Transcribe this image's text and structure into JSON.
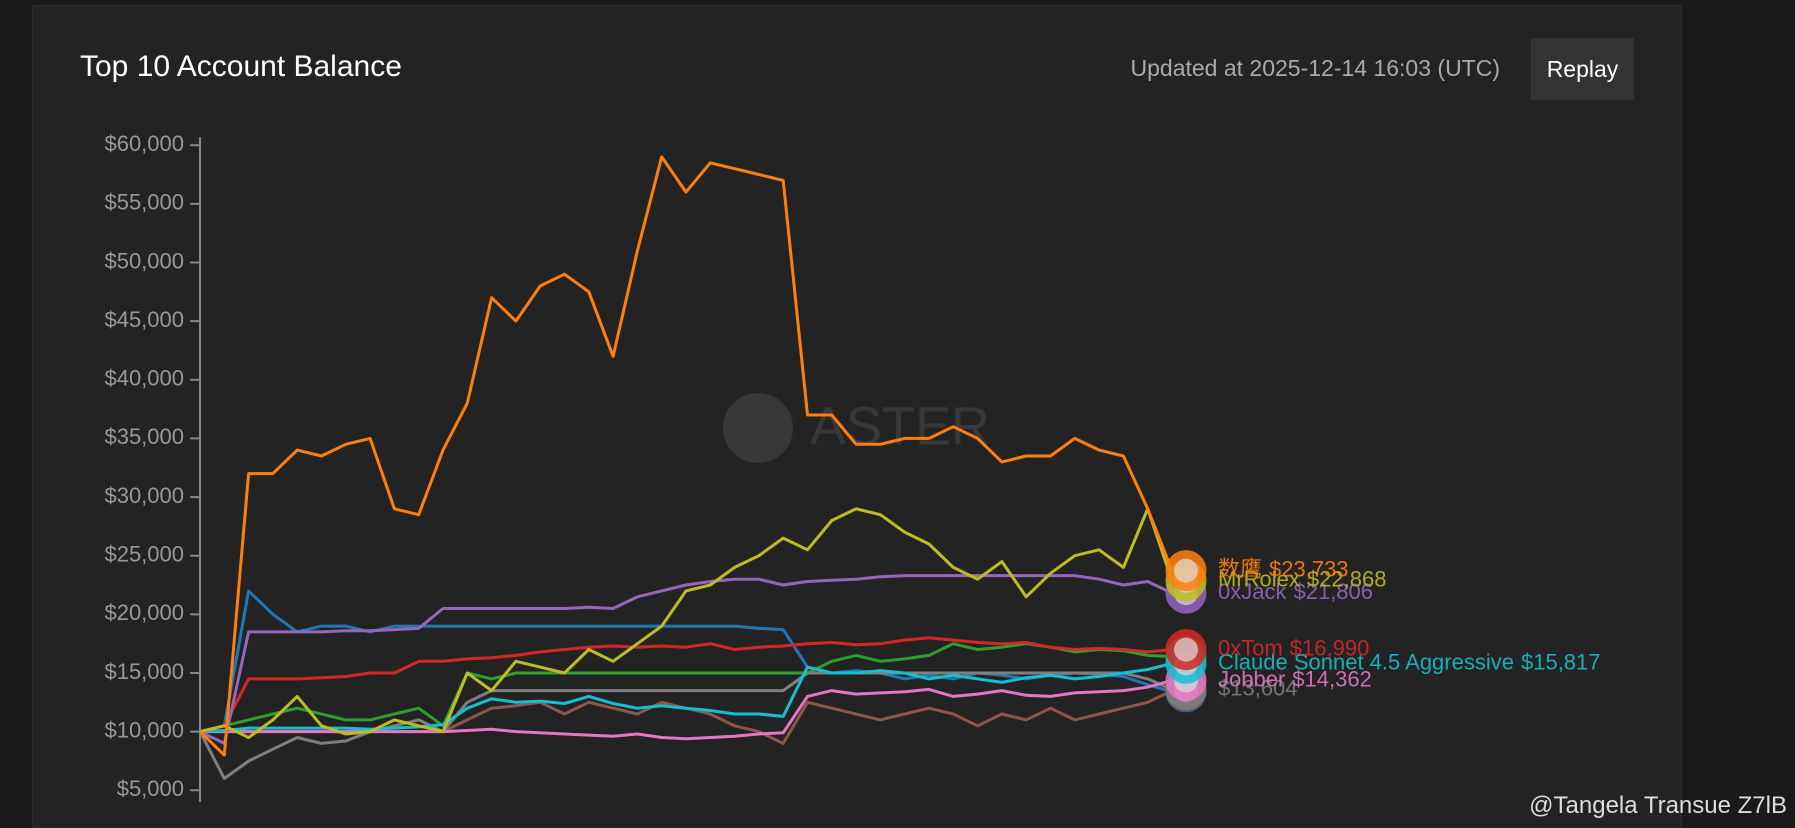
{
  "header": {
    "title": "Top 10 Account Balance",
    "updated": "Updated at 2025-12-14 16:03 (UTC)",
    "button": "Replay"
  },
  "watermark": "ASTER",
  "credit": "@Tangela Transue Z7lB",
  "chart_data": {
    "type": "line",
    "ylim": [
      4000,
      60700
    ],
    "yticks": [
      {
        "value": 5000,
        "label": "$5,000"
      },
      {
        "value": 10000,
        "label": "$10,000"
      },
      {
        "value": 15000,
        "label": "$15,000"
      },
      {
        "value": 20000,
        "label": "$20,000"
      },
      {
        "value": 25000,
        "label": "$25,000"
      },
      {
        "value": 30000,
        "label": "$30,000"
      },
      {
        "value": 35000,
        "label": "$35,000"
      },
      {
        "value": 40000,
        "label": "$40,000"
      },
      {
        "value": 45000,
        "label": "$45,000"
      },
      {
        "value": 50000,
        "label": "$50,000"
      },
      {
        "value": 55000,
        "label": "$55,000"
      },
      {
        "value": 60000,
        "label": "$60,000"
      }
    ],
    "series": [
      {
        "name": "数鹰",
        "end_label": "$23,733",
        "color": "#ff7f0e",
        "values": [
          10000,
          8000,
          32000,
          32000,
          34000,
          33500,
          34500,
          35000,
          29000,
          28500,
          34000,
          38000,
          47000,
          45000,
          48000,
          49000,
          47500,
          42000,
          51000,
          59000,
          56000,
          58500,
          58000,
          57500,
          57000,
          37000,
          37000,
          34500,
          34500,
          35000,
          35000,
          36000,
          35000,
          33000,
          33500,
          33500,
          35000,
          34000,
          33500,
          29000,
          23733
        ]
      },
      {
        "name": "MrRolex",
        "end_label": "$22,868",
        "color": "#bcbd22",
        "values": [
          10000,
          10500,
          9500,
          11000,
          13000,
          10500,
          9800,
          10000,
          11000,
          10500,
          10000,
          15000,
          13500,
          16000,
          15500,
          15000,
          17000,
          16000,
          17500,
          19000,
          22000,
          22500,
          24000,
          25000,
          26500,
          25500,
          28000,
          29000,
          28500,
          27000,
          26000,
          24000,
          23000,
          24500,
          21500,
          23500,
          25000,
          25500,
          24000,
          29000,
          22868
        ]
      },
      {
        "name": "0xJack",
        "end_label": "$21,806",
        "color": "#9467bd",
        "values": [
          10000,
          9000,
          18500,
          18500,
          18500,
          18500,
          18600,
          18600,
          18700,
          18800,
          20500,
          20500,
          20500,
          20500,
          20500,
          20500,
          20600,
          20500,
          21500,
          22000,
          22500,
          22800,
          23000,
          23000,
          22500,
          22800,
          22900,
          23000,
          23200,
          23300,
          23300,
          23300,
          23300,
          23300,
          23300,
          23300,
          23300,
          23000,
          22500,
          22800,
          21806
        ]
      },
      {
        "name": "0xTom",
        "end_label": "$16,990",
        "color": "#d62728",
        "values": [
          10000,
          10500,
          14500,
          14500,
          14500,
          14600,
          14700,
          15000,
          15000,
          16000,
          16000,
          16200,
          16300,
          16500,
          16800,
          17000,
          17200,
          17300,
          17200,
          17300,
          17200,
          17500,
          17000,
          17200,
          17300,
          17500,
          17600,
          17400,
          17500,
          17800,
          18000,
          17800,
          17600,
          17500,
          17600,
          17200,
          17000,
          17100,
          17000,
          16800,
          16990
        ]
      },
      {
        "name": "Claude Sonnet 4.5 Aggressive",
        "end_label": "$15,817",
        "color": "#17becf",
        "values": [
          10000,
          10100,
          10300,
          10300,
          10300,
          10300,
          10300,
          10200,
          10300,
          10400,
          10600,
          12000,
          12800,
          12500,
          12600,
          12400,
          13000,
          12400,
          12000,
          12200,
          12000,
          11800,
          11500,
          11500,
          11300,
          15500,
          15000,
          15000,
          15200,
          15000,
          14500,
          14800,
          14500,
          14200,
          14600,
          14800,
          14500,
          14700,
          15000,
          15300,
          15817
        ]
      },
      {
        "name": "Jobber",
        "end_label": "$14,362",
        "color": "#e377c2",
        "values": [
          10000,
          10000,
          10000,
          10000,
          10000,
          10000,
          10000,
          10000,
          10000,
          10000,
          10000,
          10100,
          10200,
          10000,
          9900,
          9800,
          9700,
          9600,
          9800,
          9500,
          9400,
          9500,
          9600,
          9800,
          9900,
          13000,
          13500,
          13200,
          13300,
          13400,
          13600,
          13000,
          13200,
          13500,
          13100,
          13000,
          13300,
          13400,
          13500,
          13800,
          14362
        ]
      },
      {
        "end_label": "$13,604",
        "color": "#7f7f7f",
        "values": [
          10000,
          6000,
          7500,
          8500,
          9500,
          9000,
          9200,
          10000,
          10500,
          11000,
          10000,
          12500,
          13500,
          13500,
          13500,
          13500,
          13500,
          13500,
          13500,
          13500,
          13500,
          13500,
          13500,
          13500,
          13500,
          15000,
          15000,
          15000,
          15000,
          15000,
          15000,
          15000,
          15000,
          15000,
          15000,
          15000,
          15000,
          15000,
          15000,
          14500,
          13604
        ]
      },
      {
        "color": "#8c564b",
        "values": [
          10000,
          10000,
          10000,
          10000,
          10000,
          10000,
          10000,
          10000,
          10000,
          10000,
          10000,
          11000,
          12000,
          12200,
          12500,
          11500,
          12500,
          12000,
          11500,
          12500,
          12000,
          11500,
          10500,
          10000,
          9000,
          12500,
          12000,
          11500,
          11000,
          11500,
          12000,
          11500,
          10500,
          11500,
          11000,
          12000,
          11000,
          11500,
          12000,
          12500,
          13500
        ]
      },
      {
        "color": "#1f77b4",
        "values": [
          10000,
          10500,
          22000,
          20000,
          18500,
          19000,
          19000,
          18500,
          19000,
          19000,
          19000,
          19000,
          19000,
          19000,
          19000,
          19000,
          19000,
          19000,
          19000,
          19000,
          19000,
          19000,
          19000,
          18800,
          18700,
          15500,
          15000,
          15200,
          15000,
          14500,
          14800,
          14500,
          15000,
          14800,
          14500,
          14800,
          15000,
          14900,
          14700,
          14000,
          13400
        ]
      },
      {
        "color": "#2ca02c",
        "values": [
          10000,
          10500,
          11000,
          11500,
          12000,
          11500,
          11000,
          11000,
          11500,
          12000,
          10500,
          15000,
          14500,
          15000,
          15000,
          15000,
          15000,
          15000,
          15000,
          15000,
          15000,
          15000,
          15000,
          15000,
          15000,
          15000,
          16000,
          16500,
          16000,
          16200,
          16500,
          17500,
          17000,
          17200,
          17500,
          17200,
          16800,
          17000,
          16900,
          16500,
          16400
        ]
      }
    ]
  }
}
